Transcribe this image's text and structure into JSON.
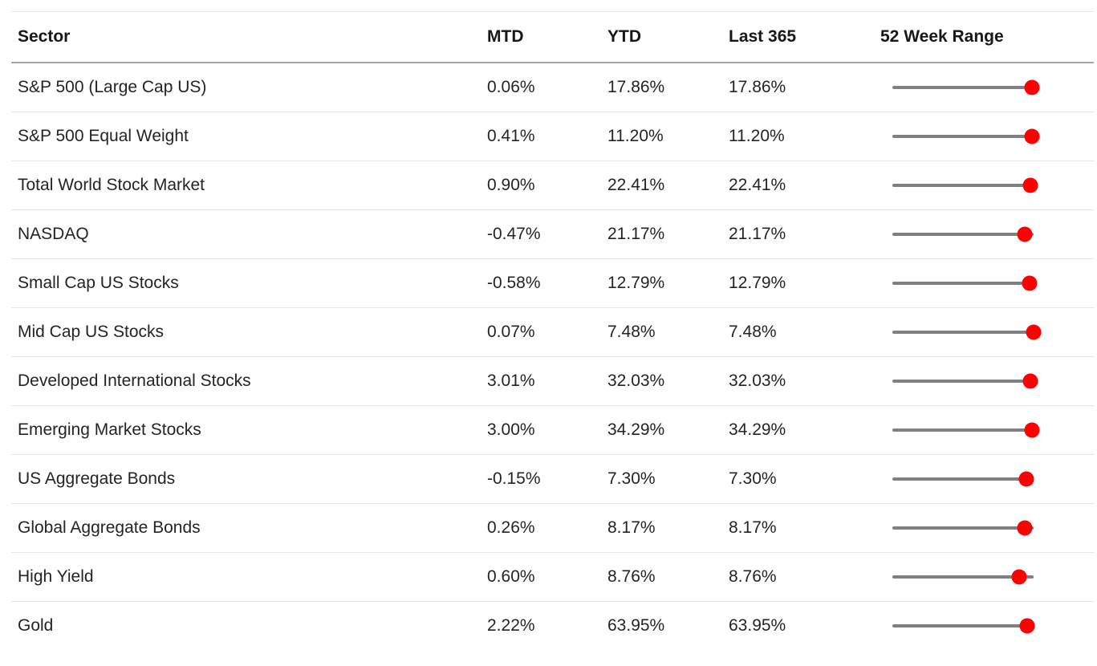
{
  "chart_data": {
    "type": "table",
    "columns": [
      "Sector",
      "MTD",
      "YTD",
      "Last 365",
      "52 Week Range"
    ],
    "rows": [
      {
        "sector": "S&P 500 (Large Cap US)",
        "mtd": "0.06%",
        "ytd": "17.86%",
        "last_365": "17.86%",
        "range_position": 0.99
      },
      {
        "sector": "S&P 500 Equal Weight",
        "mtd": "0.41%",
        "ytd": "11.20%",
        "last_365": "11.20%",
        "range_position": 0.99
      },
      {
        "sector": "Total World Stock Market",
        "mtd": "0.90%",
        "ytd": "22.41%",
        "last_365": "22.41%",
        "range_position": 0.98
      },
      {
        "sector": "NASDAQ",
        "mtd": "-0.47%",
        "ytd": "21.17%",
        "last_365": "21.17%",
        "range_position": 0.94
      },
      {
        "sector": "Small Cap US Stocks",
        "mtd": "-0.58%",
        "ytd": "12.79%",
        "last_365": "12.79%",
        "range_position": 0.97
      },
      {
        "sector": "Mid Cap US Stocks",
        "mtd": "0.07%",
        "ytd": "7.48%",
        "last_365": "7.48%",
        "range_position": 1.0
      },
      {
        "sector": "Developed International Stocks",
        "mtd": "3.01%",
        "ytd": "32.03%",
        "last_365": "32.03%",
        "range_position": 0.98
      },
      {
        "sector": "Emerging Market Stocks",
        "mtd": "3.00%",
        "ytd": "34.29%",
        "last_365": "34.29%",
        "range_position": 0.99
      },
      {
        "sector": "US Aggregate Bonds",
        "mtd": "-0.15%",
        "ytd": "7.30%",
        "last_365": "7.30%",
        "range_position": 0.95
      },
      {
        "sector": "Global Aggregate Bonds",
        "mtd": "0.26%",
        "ytd": "8.17%",
        "last_365": "8.17%",
        "range_position": 0.94
      },
      {
        "sector": "High Yield",
        "mtd": "0.60%",
        "ytd": "8.76%",
        "last_365": "8.76%",
        "range_position": 0.9
      },
      {
        "sector": "Gold",
        "mtd": "2.22%",
        "ytd": "63.95%",
        "last_365": "63.95%",
        "range_position": 0.955
      }
    ],
    "colors": {
      "range_dot": "#ff0000",
      "range_track": "#808080"
    },
    "layout": {
      "grid": "horizontal row dividers only",
      "range_scale": [
        0,
        1
      ]
    }
  }
}
